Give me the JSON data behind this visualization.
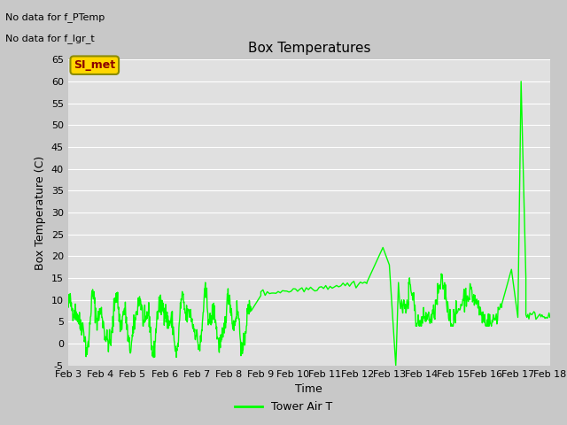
{
  "title": "Box Temperatures",
  "ylabel": "Box Temperature (C)",
  "xlabel": "Time",
  "ylim": [
    -5,
    65
  ],
  "yticks": [
    -5,
    0,
    5,
    10,
    15,
    20,
    25,
    30,
    35,
    40,
    45,
    50,
    55,
    60,
    65
  ],
  "line_color": "#00FF00",
  "line_width": 1.0,
  "bg_color": "#E0E0E0",
  "fig_bg_color": "#C8C8C8",
  "no_data_texts": [
    "No data for f_PTemp",
    "No data for f_lgr_t"
  ],
  "si_met_label": "SI_met",
  "legend_label": "Tower Air T",
  "x_tick_labels": [
    "Feb 3",
    "Feb 4",
    "Feb 5",
    "Feb 6",
    "Feb 7",
    "Feb 8",
    "Feb 9",
    "Feb 10",
    "Feb 11",
    "Feb 12",
    "Feb 13",
    "Feb 14",
    "Feb 15",
    "Feb 16",
    "Feb 17",
    "Feb 18"
  ],
  "annotation_color": "#8B0000",
  "annotation_bg": "#FFD700",
  "grid_color": "#FFFFFF",
  "title_fontsize": 11,
  "axis_fontsize": 8,
  "label_fontsize": 9
}
